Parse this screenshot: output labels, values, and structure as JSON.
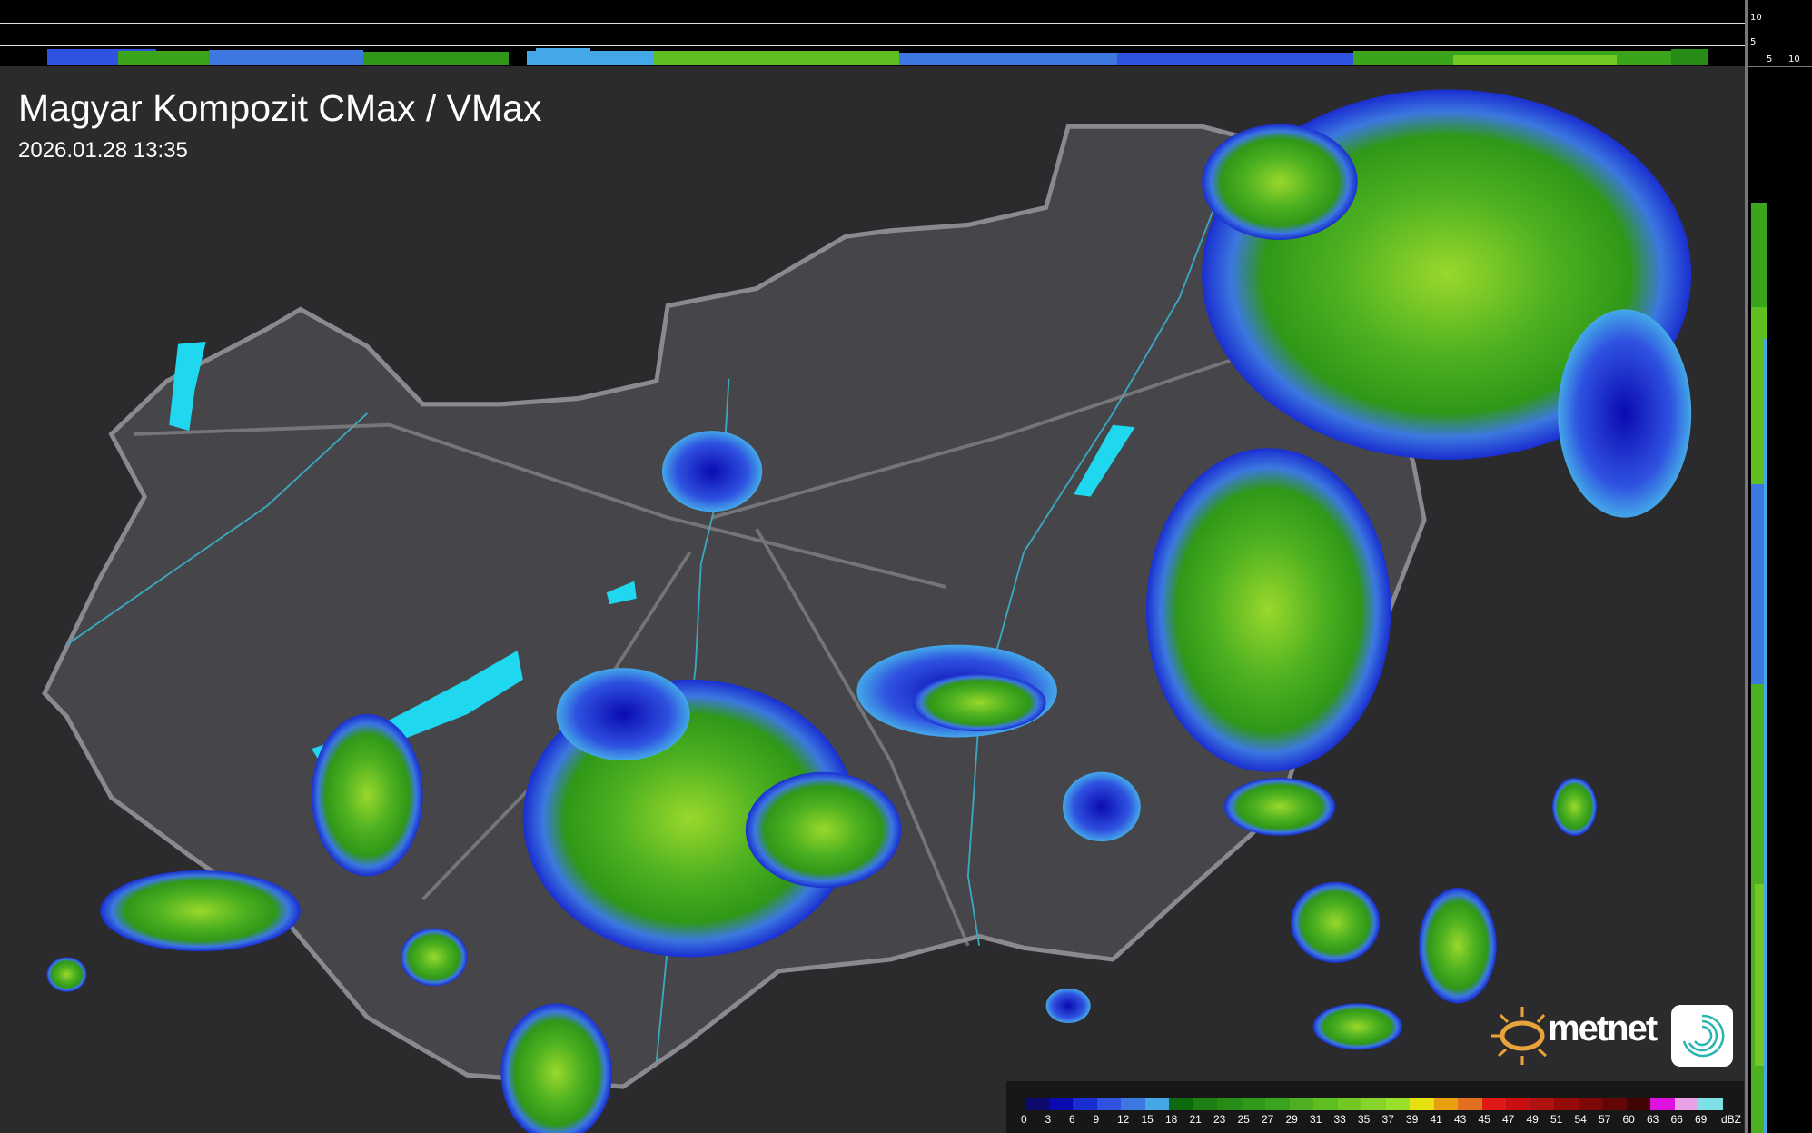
{
  "header": {
    "title": "Magyar Kompozit CMax / VMax",
    "timestamp": "2026.01.28 13:35"
  },
  "side_profile": {
    "vertical_axis_labels": [
      "10",
      "5"
    ],
    "horizontal_axis_labels": [
      "5",
      "10"
    ]
  },
  "legend": {
    "unit": "dBZ",
    "labels": [
      "0",
      "3",
      "6",
      "9",
      "12",
      "15",
      "18",
      "21",
      "23",
      "25",
      "27",
      "29",
      "31",
      "33",
      "35",
      "37",
      "39",
      "41",
      "43",
      "45",
      "47",
      "49",
      "51",
      "54",
      "57",
      "60",
      "63",
      "66",
      "69"
    ],
    "colors": [
      "#0b0b6e",
      "#0a0ab0",
      "#1a2ed0",
      "#2f52e0",
      "#3c78e0",
      "#44a8e8",
      "#0f6a0f",
      "#1d7f12",
      "#268c16",
      "#2f9818",
      "#3aa41c",
      "#4cb020",
      "#5ebe22",
      "#74c826",
      "#88d42a",
      "#98e02c",
      "#e6e010",
      "#e8a010",
      "#e07020",
      "#e01818",
      "#c81010",
      "#b01010",
      "#980a0a",
      "#7e0808",
      "#640606",
      "#400404",
      "#e010e0",
      "#e8a0e8",
      "#80e0e8"
    ]
  },
  "logo": {
    "text": "metnet"
  },
  "colors": {
    "background": "#2b2b2e",
    "country": "#4a4a4e",
    "border": "#8a8a8e",
    "water": "#1fd8f0",
    "rivers": "#3aa8c0"
  }
}
